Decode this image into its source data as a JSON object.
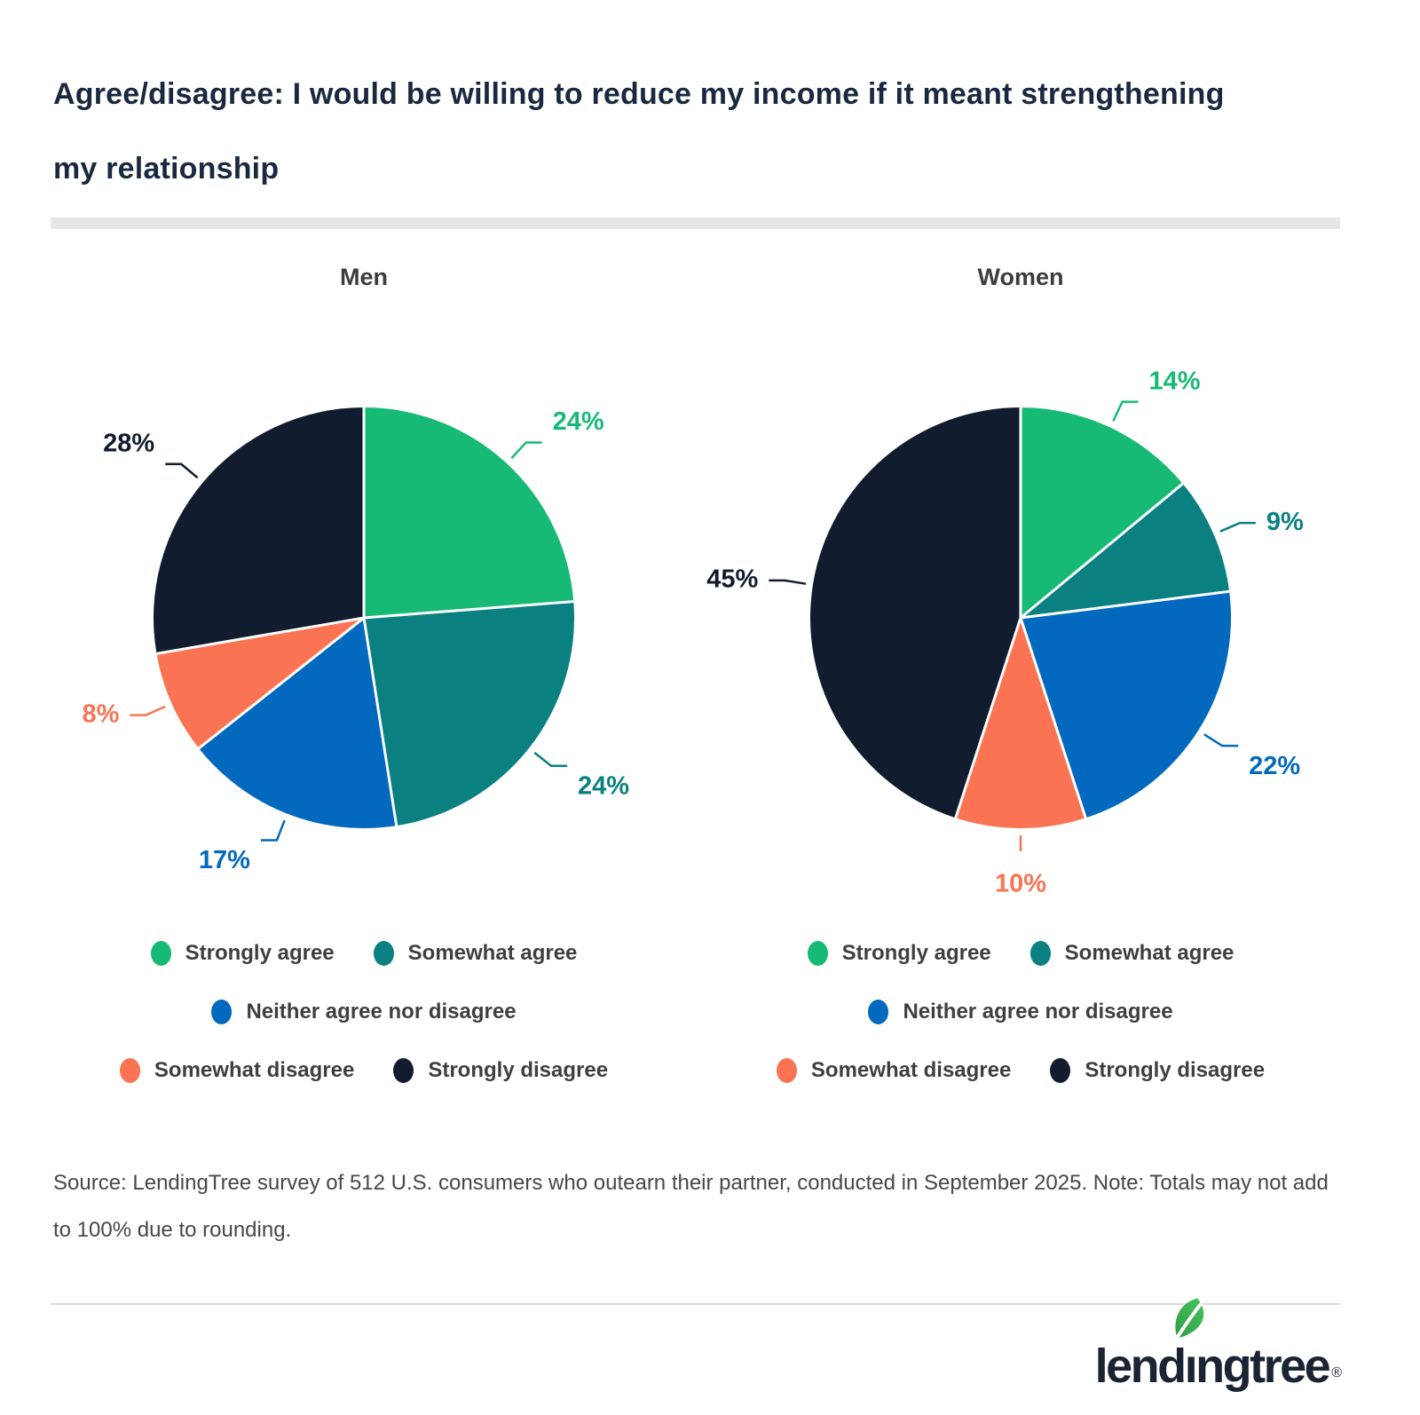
{
  "header": {
    "title": "Agree/disagree: I would be willing to reduce my income if it meant strengthening my relationship",
    "title_line1": "Agree/disagree: I would be willing to reduce my income if it meant strengthening",
    "title_line2": "my relationship"
  },
  "chart_data": {
    "type": "pie",
    "title": "Agree/disagree: I would be willing to reduce my income if it meant strengthening my relationship",
    "categories": [
      "Strongly agree",
      "Somewhat agree",
      "Neither agree nor disagree",
      "Somewhat disagree",
      "Strongly disagree"
    ],
    "colors": [
      "#17BA74",
      "#0A8080",
      "#0369BE",
      "#FA7453",
      "#111D2E"
    ],
    "value_suffix": "%",
    "start_angle_deg": 0,
    "direction": "clockwise",
    "legend_position": "bottom",
    "legend_rows": [
      [
        0,
        1
      ],
      [
        2
      ],
      [
        3,
        4
      ]
    ],
    "charts": [
      {
        "label": "Men",
        "values": [
          24,
          24,
          17,
          8,
          28
        ]
      },
      {
        "label": "Women",
        "values": [
          14,
          9,
          22,
          10,
          45
        ]
      }
    ]
  },
  "footnote": {
    "text": "Source: LendingTree survey of 512 U.S. consumers who outearn their partner, conducted in September 2025. Note: Totals may not add to 100% due to rounding."
  },
  "logo": {
    "name": "LendingTree",
    "pre": "lend",
    "dotless_i": "ı",
    "post": "ngtree",
    "registered": "®"
  },
  "colors": {
    "background": "#FFFFFF",
    "title_text": "#1A2940",
    "chart_title_text": "#3D3D3D",
    "legend_text": "#3F3F3F",
    "divider": "#E7E7E9",
    "footnote_text": "#474747",
    "logo_text": "#1A2433",
    "leaf_dark": "#2E9E44",
    "leaf_light": "#47C35F",
    "slice_separator": "#FFFFFF"
  }
}
